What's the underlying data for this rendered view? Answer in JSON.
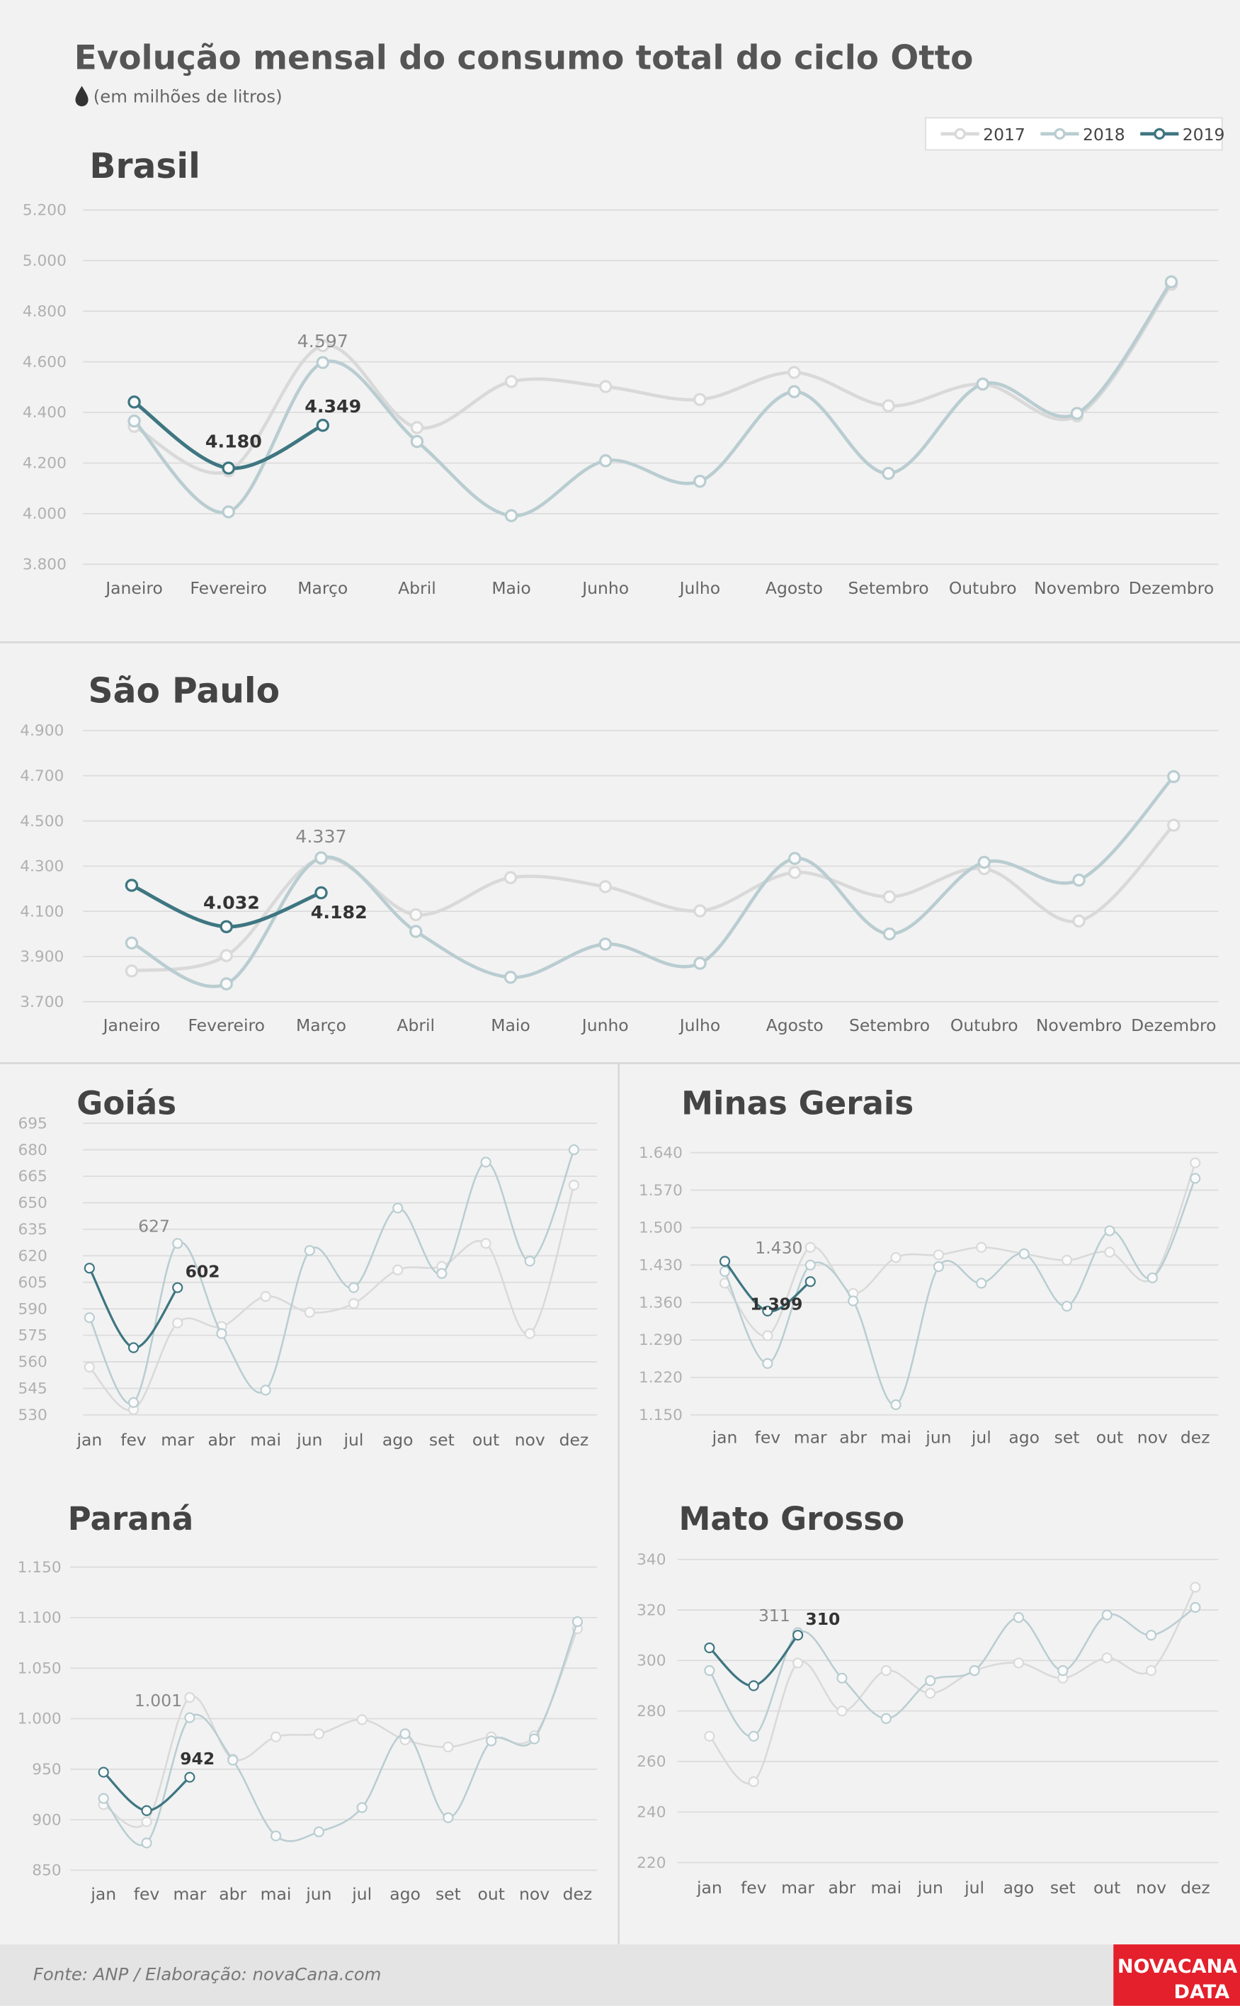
{
  "title": "Evolução mensal do consumo total do ciclo Otto",
  "subtitle": "(em milhões de litros)",
  "source": "Fonte: ANP  / Elaboração: novaCana.com",
  "logo": {
    "line1": "NOVACANA",
    "line2": "DATA"
  },
  "chart_data": [
    {
      "type": "line",
      "title": "Brasil",
      "legend": "upper right",
      "categories": [
        "Janeiro",
        "Fevereiro",
        "Março",
        "Abril",
        "Maio",
        "Junho",
        "Julho",
        "Agosto",
        "Setembro",
        "Outubro",
        "Novembro",
        "Dezembro"
      ],
      "ylim": [
        3800,
        5200
      ],
      "yticks": [
        {
          "value": 3800,
          "label": "3.800"
        },
        {
          "value": 4000,
          "label": "4.000"
        },
        {
          "value": 4200,
          "label": "4.200"
        },
        {
          "value": 4400,
          "label": "4.400"
        },
        {
          "value": 4600,
          "label": "4.600"
        },
        {
          "value": 4800,
          "label": "4.800"
        },
        {
          "value": 5000,
          "label": "5.000"
        },
        {
          "value": 5200,
          "label": "5.200"
        }
      ],
      "grid": true,
      "series": [
        {
          "name": "2017",
          "color": "#d9d9d9",
          "values": [
            4345,
            4169,
            4664,
            4340,
            4522,
            4502,
            4451,
            4558,
            4426,
            4512,
            4386,
            4906
          ]
        },
        {
          "name": "2018",
          "color": "#b9cdd1",
          "values": [
            4366,
            4007,
            4597,
            4285,
            3992,
            4209,
            4128,
            4482,
            4159,
            4512,
            4396,
            4916
          ],
          "value_labels": [
            null,
            null,
            "4.597",
            null,
            null,
            null,
            null,
            null,
            null,
            null,
            null,
            null
          ]
        },
        {
          "name": "2019",
          "color": "#3e7681",
          "values": [
            4441,
            4180,
            4349,
            null,
            null,
            null,
            null,
            null,
            null,
            null,
            null,
            null
          ],
          "value_labels": [
            null,
            "4.180",
            "4.349",
            null,
            null,
            null,
            null,
            null,
            null,
            null,
            null,
            null
          ]
        }
      ]
    },
    {
      "type": "line",
      "title": "São Paulo",
      "categories": [
        "Janeiro",
        "Fevereiro",
        "Março",
        "Abril",
        "Maio",
        "Junho",
        "Julho",
        "Agosto",
        "Setembro",
        "Outubro",
        "Novembro",
        "Dezembro"
      ],
      "ylim": [
        3700,
        4900
      ],
      "yticks": [
        {
          "value": 3700,
          "label": "3.700"
        },
        {
          "value": 3900,
          "label": "3.900"
        },
        {
          "value": 4100,
          "label": "4.100"
        },
        {
          "value": 4300,
          "label": "4.300"
        },
        {
          "value": 4500,
          "label": "4.500"
        },
        {
          "value": 4700,
          "label": "4.700"
        },
        {
          "value": 4900,
          "label": "4.900"
        }
      ],
      "grid": true,
      "series": [
        {
          "color": "#d9d9d9",
          "values": [
            3836,
            3904,
            4334,
            4085,
            4249,
            4209,
            4102,
            4272,
            4164,
            4289,
            4057,
            4481
          ]
        },
        {
          "color": "#b9cdd1",
          "values": [
            3960,
            3779,
            4337,
            4011,
            3808,
            3955,
            3870,
            4334,
            4000,
            4317,
            4238,
            4696
          ],
          "value_labels": [
            null,
            null,
            "4.337",
            null,
            null,
            null,
            null,
            null,
            null,
            null,
            null,
            null
          ]
        },
        {
          "color": "#3e7681",
          "values": [
            4215,
            4032,
            4182,
            null,
            null,
            null,
            null,
            null,
            null,
            null,
            null,
            null
          ],
          "value_labels": [
            null,
            "4.032",
            "4.182",
            null,
            null,
            null,
            null,
            null,
            null,
            null,
            null,
            null
          ]
        }
      ]
    },
    {
      "type": "line",
      "title": "Goiás",
      "categories": [
        "jan",
        "fev",
        "mar",
        "abr",
        "mai",
        "jun",
        "jul",
        "ago",
        "set",
        "out",
        "nov",
        "dez"
      ],
      "ylim": [
        530,
        695
      ],
      "yticks": [
        530,
        545,
        560,
        575,
        590,
        605,
        620,
        635,
        650,
        665,
        680,
        695
      ],
      "grid": true,
      "series": [
        {
          "color": "#d9d9d9",
          "values": [
            557,
            533,
            582,
            580,
            597,
            588,
            593,
            612,
            614,
            627,
            576,
            660
          ]
        },
        {
          "color": "#b9cdd1",
          "values": [
            585,
            537,
            627,
            576,
            544,
            623,
            602,
            647,
            610,
            673,
            617,
            680
          ],
          "value_labels": [
            null,
            null,
            "627",
            null,
            null,
            null,
            null,
            null,
            null,
            null,
            null,
            null
          ]
        },
        {
          "color": "#3e7681",
          "values": [
            613,
            568,
            602,
            null,
            null,
            null,
            null,
            null,
            null,
            null,
            null,
            null
          ],
          "value_labels": [
            null,
            null,
            "602",
            null,
            null,
            null,
            null,
            null,
            null,
            null,
            null,
            null
          ]
        }
      ]
    },
    {
      "type": "line",
      "title": "Minas Gerais",
      "categories": [
        "jan",
        "fev",
        "mar",
        "abr",
        "mai",
        "jun",
        "jul",
        "ago",
        "set",
        "out",
        "nov",
        "dez"
      ],
      "ylim": [
        1150,
        1640
      ],
      "yticks": [
        {
          "value": 1150,
          "label": "1.150"
        },
        {
          "value": 1220,
          "label": "1.220"
        },
        {
          "value": 1290,
          "label": "1.290"
        },
        {
          "value": 1360,
          "label": "1.360"
        },
        {
          "value": 1430,
          "label": "1.430"
        },
        {
          "value": 1500,
          "label": "1.500"
        },
        {
          "value": 1570,
          "label": "1.570"
        },
        {
          "value": 1640,
          "label": "1.640"
        }
      ],
      "grid": true,
      "series": [
        {
          "color": "#d9d9d9",
          "values": [
            1396,
            1298,
            1463,
            1377,
            1444,
            1449,
            1463,
            1451,
            1439,
            1454,
            1406,
            1621
          ]
        },
        {
          "color": "#b9cdd1",
          "values": [
            1418,
            1246,
            1430,
            1363,
            1169,
            1427,
            1396,
            1451,
            1353,
            1494,
            1406,
            1592
          ],
          "value_labels": [
            null,
            null,
            "1.430",
            null,
            null,
            null,
            null,
            null,
            null,
            null,
            null,
            null
          ]
        },
        {
          "color": "#3e7681",
          "values": [
            1437,
            1344,
            1399,
            null,
            null,
            null,
            null,
            null,
            null,
            null,
            null,
            null
          ],
          "value_labels": [
            null,
            null,
            "1.399",
            null,
            null,
            null,
            null,
            null,
            null,
            null,
            null,
            null
          ]
        }
      ]
    },
    {
      "type": "line",
      "title": "Paraná",
      "categories": [
        "jan",
        "fev",
        "mar",
        "abr",
        "mai",
        "jun",
        "jul",
        "ago",
        "set",
        "out",
        "nov",
        "dez"
      ],
      "ylim": [
        850,
        1150
      ],
      "yticks": [
        850,
        900,
        950,
        {
          "value": 1000,
          "label": "1.000"
        },
        {
          "value": 1050,
          "label": "1.050"
        },
        {
          "value": 1100,
          "label": "1.100"
        },
        {
          "value": 1150,
          "label": "1.150"
        }
      ],
      "grid": true,
      "series": [
        {
          "color": "#d9d9d9",
          "values": [
            915,
            898,
            1021,
            960,
            982,
            985,
            999,
            979,
            972,
            982,
            983,
            1089
          ]
        },
        {
          "color": "#b9cdd1",
          "values": [
            921,
            877,
            1001,
            959,
            884,
            888,
            912,
            985,
            902,
            978,
            980,
            1096
          ],
          "value_labels": [
            null,
            null,
            "1.001",
            null,
            null,
            null,
            null,
            null,
            null,
            null,
            null,
            null
          ]
        },
        {
          "color": "#3e7681",
          "values": [
            947,
            909,
            942,
            null,
            null,
            null,
            null,
            null,
            null,
            null,
            null,
            null
          ],
          "value_labels": [
            null,
            null,
            "942",
            null,
            null,
            null,
            null,
            null,
            null,
            null,
            null,
            null
          ]
        }
      ]
    },
    {
      "type": "line",
      "title": "Mato Grosso",
      "categories": [
        "jan",
        "fev",
        "mar",
        "abr",
        "mai",
        "jun",
        "jul",
        "ago",
        "set",
        "out",
        "nov",
        "dez"
      ],
      "ylim": [
        220,
        340
      ],
      "yticks": [
        220,
        240,
        260,
        280,
        300,
        320,
        340
      ],
      "grid": true,
      "series": [
        {
          "color": "#d9d9d9",
          "values": [
            270,
            252,
            299,
            280,
            296,
            287,
            296,
            299,
            293,
            301,
            296,
            329
          ]
        },
        {
          "color": "#b9cdd1",
          "values": [
            296,
            270,
            311,
            293,
            277,
            292,
            296,
            317,
            296,
            318,
            310,
            321
          ],
          "value_labels": [
            null,
            null,
            "311",
            null,
            null,
            null,
            null,
            null,
            null,
            null,
            null,
            null
          ]
        },
        {
          "color": "#3e7681",
          "values": [
            305,
            290,
            310,
            null,
            null,
            null,
            null,
            null,
            null,
            null,
            null,
            null
          ],
          "value_labels": [
            null,
            null,
            "310",
            null,
            null,
            null,
            null,
            null,
            null,
            null,
            null,
            null
          ]
        }
      ]
    }
  ]
}
